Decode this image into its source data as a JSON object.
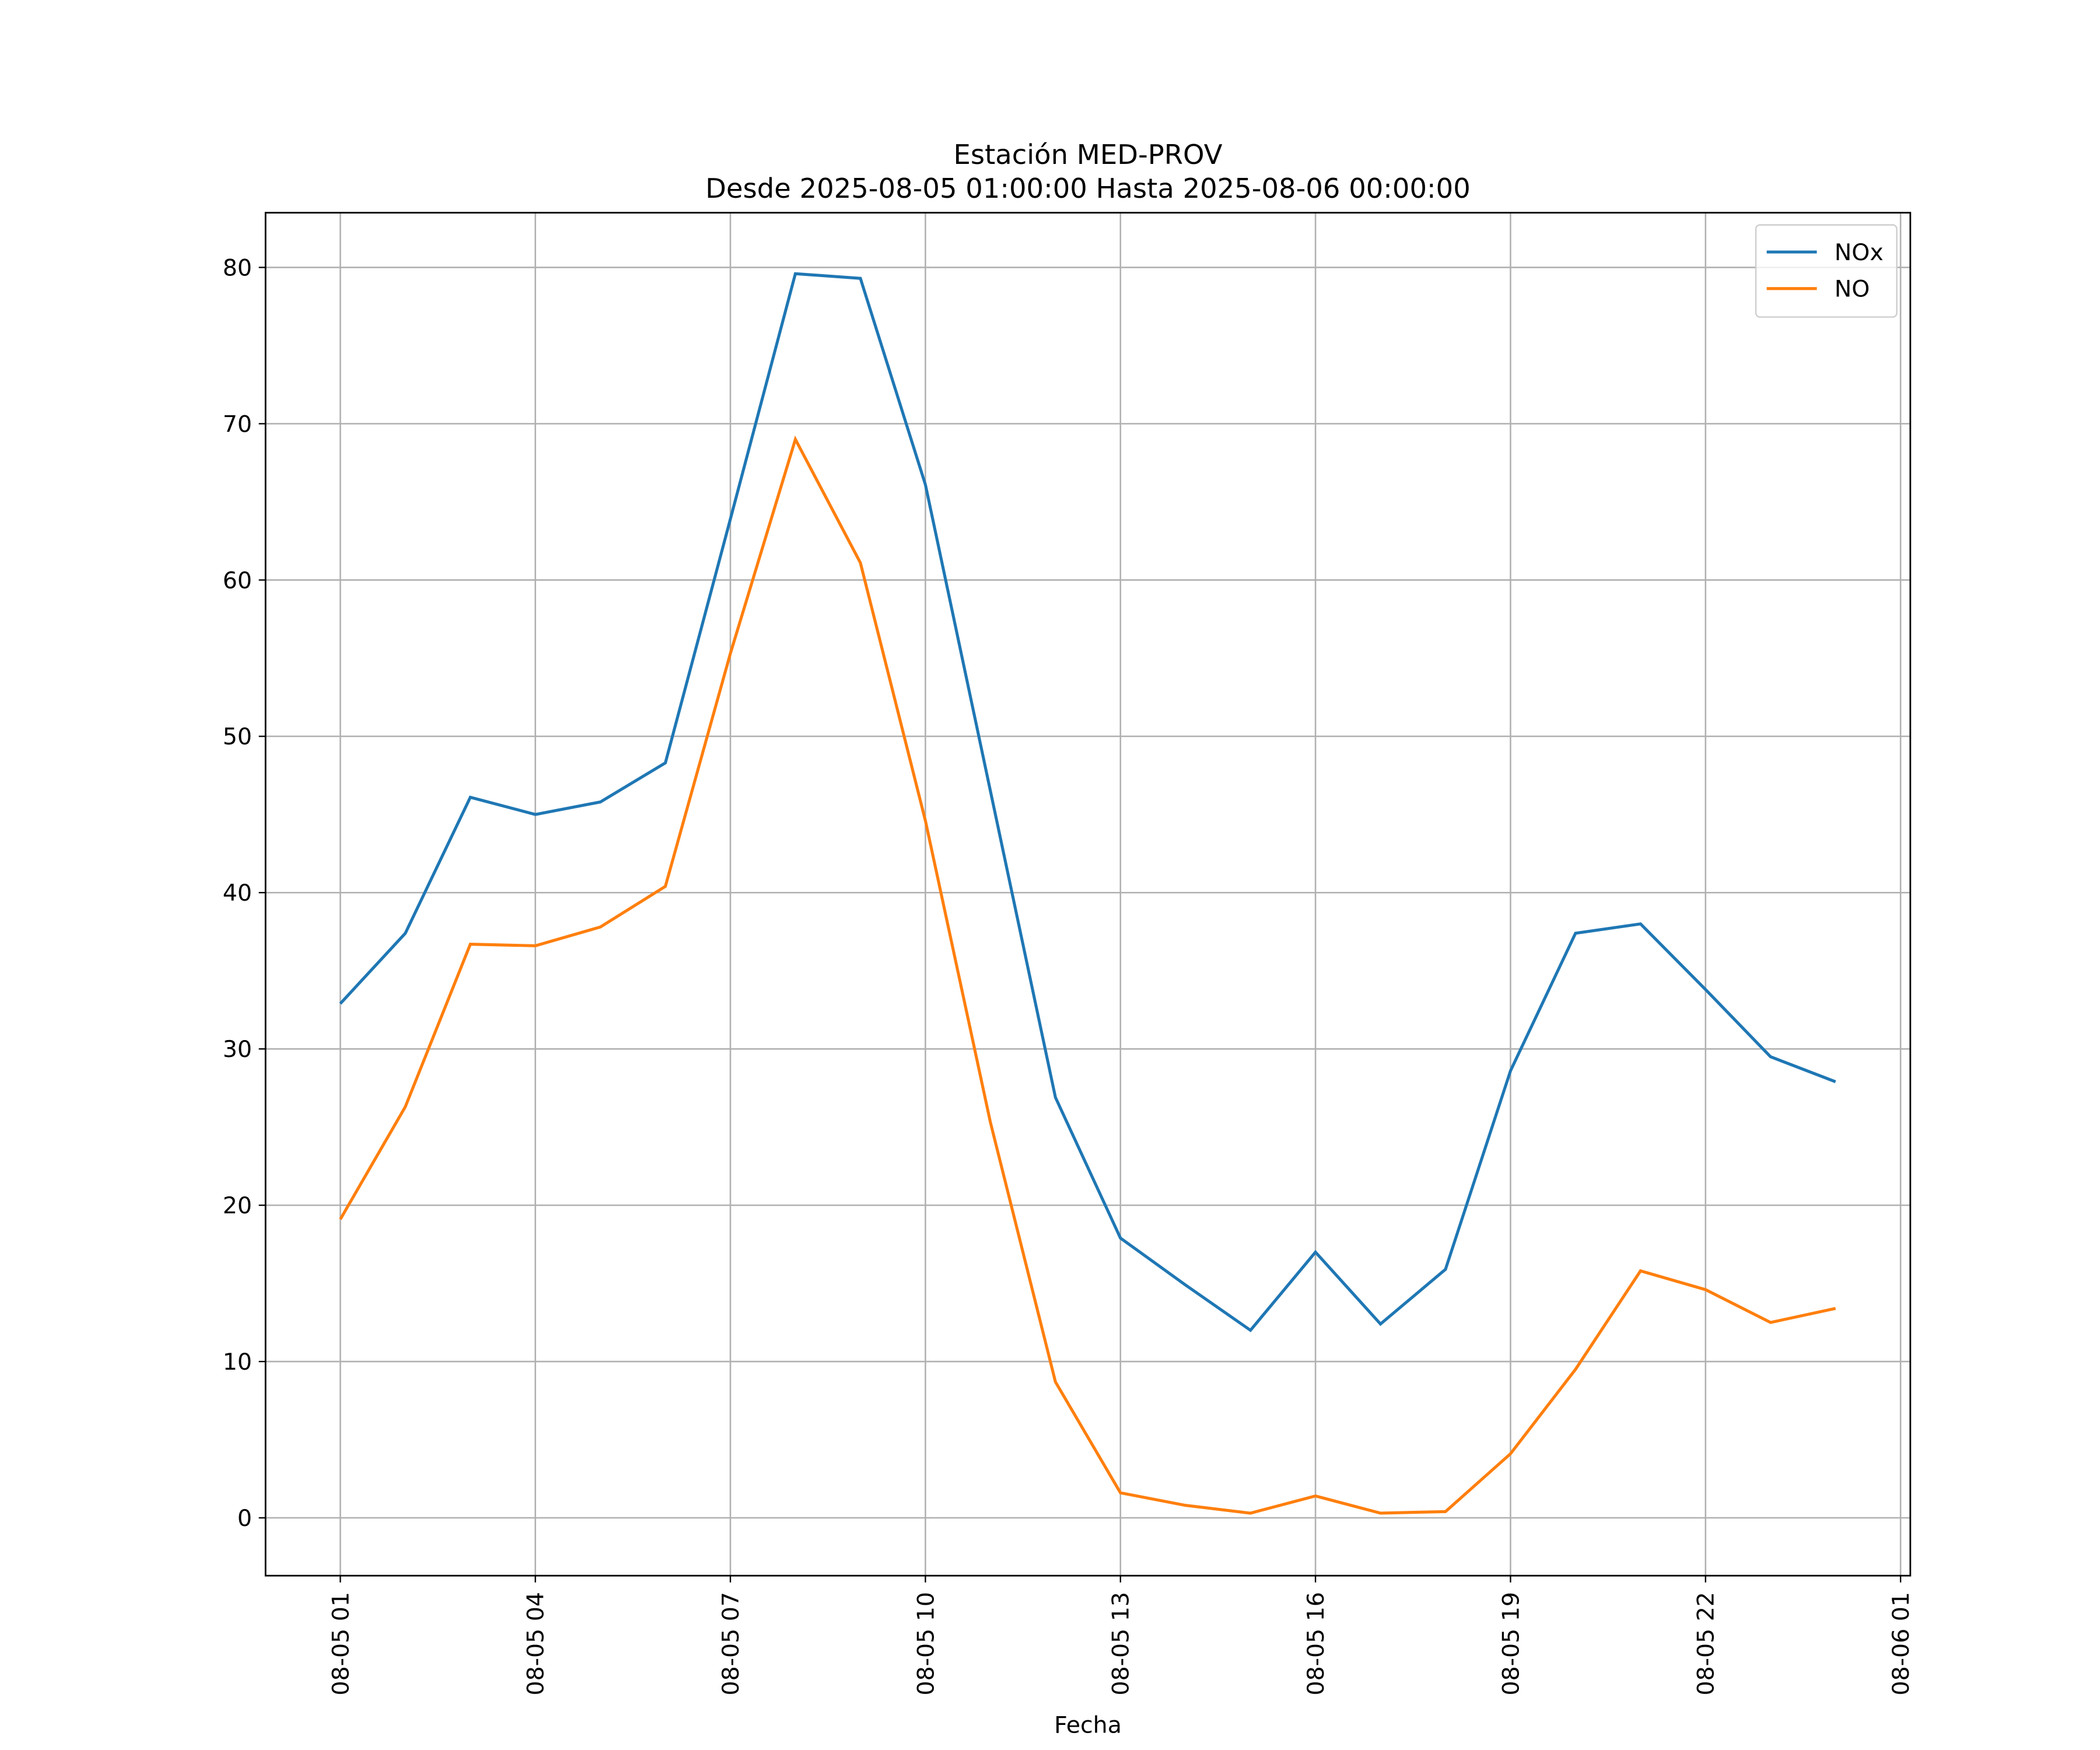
{
  "chart_data": {
    "type": "line",
    "title": "Estación MED-PROV",
    "subtitle": "Desde 2025-08-05 01:00:00 Hasta 2025-08-06 00:00:00",
    "x_label": "Fecha",
    "x": [
      "08-05 01",
      "08-05 02",
      "08-05 03",
      "08-05 04",
      "08-05 05",
      "08-05 06",
      "08-05 07",
      "08-05 08",
      "08-05 09",
      "08-05 10",
      "08-05 11",
      "08-05 12",
      "08-05 13",
      "08-05 14",
      "08-05 15",
      "08-05 16",
      "08-05 17",
      "08-05 18",
      "08-05 19",
      "08-05 20",
      "08-05 21",
      "08-05 22",
      "08-05 23",
      "08-06 00"
    ],
    "series": [
      {
        "name": "NOx",
        "color": "#1f77b4",
        "values": [
          32.9,
          37.4,
          46.1,
          45.0,
          45.8,
          48.3,
          63.9,
          79.6,
          79.3,
          66.1,
          46.5,
          26.9,
          17.9,
          14.9,
          12.0,
          17.0,
          12.4,
          15.9,
          28.6,
          37.4,
          38.0,
          33.8,
          29.5,
          27.9
        ]
      },
      {
        "name": "NO",
        "color": "#ff7f0e",
        "values": [
          19.1,
          26.3,
          36.7,
          36.6,
          37.8,
          40.4,
          55.3,
          69.0,
          61.1,
          44.6,
          25.3,
          8.7,
          1.6,
          0.8,
          0.3,
          1.4,
          0.3,
          0.4,
          4.1,
          9.5,
          15.8,
          14.6,
          12.5,
          13.4
        ]
      }
    ],
    "xlim": [
      "08-04 23:51",
      "08-06 01:09"
    ],
    "xticks": [
      "08-05 01",
      "08-05 04",
      "08-05 07",
      "08-05 10",
      "08-05 13",
      "08-05 16",
      "08-05 19",
      "08-05 22",
      "08-06 01"
    ],
    "ylim": [
      -3.7,
      83.5
    ],
    "yticks": [
      0,
      10,
      20,
      30,
      40,
      50,
      60,
      70,
      80
    ],
    "grid": true,
    "legend": "upper right"
  }
}
